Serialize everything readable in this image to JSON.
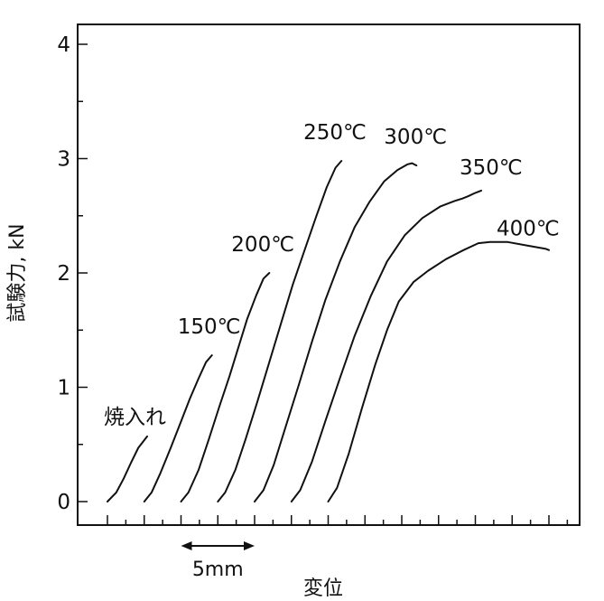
{
  "chart_data": {
    "type": "line",
    "title": "",
    "xlabel": "変位",
    "ylabel": "試験力, kN",
    "ylim": [
      0,
      4.2
    ],
    "y_ticks": [
      0,
      1,
      2,
      3,
      4
    ],
    "y_tick_labels": [
      "0",
      "1",
      "2",
      "3",
      "4"
    ],
    "y_minor_step": 0.5,
    "x_unit_mm": 5,
    "x_major_tick_every_mm": 2.5,
    "x_minor_tick_every_mm": 1.25,
    "xlim": [
      -2,
      32.5
    ],
    "scale_bar": {
      "label": "5mm",
      "from": 5,
      "to": 10
    },
    "grid": false,
    "legend": "none",
    "series": [
      {
        "name": "焼入れ",
        "x": [
          0,
          0.6,
          1.1,
          1.6,
          2.1,
          2.7
        ],
        "y": [
          0,
          0.08,
          0.2,
          0.34,
          0.47,
          0.57
        ]
      },
      {
        "name": "150℃",
        "x": [
          2.5,
          3.0,
          3.6,
          4.3,
          5.0,
          5.6,
          6.2,
          6.7,
          7.1
        ],
        "y": [
          0,
          0.08,
          0.25,
          0.47,
          0.7,
          0.9,
          1.08,
          1.22,
          1.28
        ]
      },
      {
        "name": "200℃",
        "x": [
          5,
          5.5,
          6.2,
          6.9,
          7.6,
          8.3,
          8.9,
          9.5,
          10.1,
          10.6,
          11.0
        ],
        "y": [
          0,
          0.08,
          0.28,
          0.55,
          0.83,
          1.1,
          1.35,
          1.6,
          1.8,
          1.95,
          2.0
        ]
      },
      {
        "name": "250℃",
        "x": [
          7.5,
          8.0,
          8.7,
          9.4,
          10.2,
          11.0,
          11.8,
          12.6,
          13.4,
          14.2,
          14.9,
          15.5,
          15.9
        ],
        "y": [
          0,
          0.08,
          0.28,
          0.55,
          0.88,
          1.22,
          1.56,
          1.9,
          2.2,
          2.5,
          2.75,
          2.92,
          2.98
        ]
      },
      {
        "name": "300℃",
        "x": [
          10,
          10.6,
          11.3,
          12.1,
          13.0,
          13.9,
          14.8,
          15.8,
          16.8,
          17.8,
          18.8,
          19.7,
          20.4,
          20.7,
          21.0
        ],
        "y": [
          0,
          0.1,
          0.32,
          0.65,
          1.02,
          1.4,
          1.76,
          2.1,
          2.4,
          2.62,
          2.8,
          2.9,
          2.95,
          2.96,
          2.94
        ]
      },
      {
        "name": "350℃",
        "x": [
          12.5,
          13.1,
          13.9,
          14.8,
          15.8,
          16.8,
          17.9,
          19.0,
          20.2,
          21.4,
          22.6,
          23.6,
          24.1,
          24.5,
          25.0,
          25.4
        ],
        "y": [
          0,
          0.1,
          0.35,
          0.7,
          1.08,
          1.45,
          1.8,
          2.1,
          2.33,
          2.48,
          2.58,
          2.63,
          2.65,
          2.67,
          2.7,
          2.72
        ]
      },
      {
        "name": "400℃",
        "x": [
          15,
          15.6,
          16.4,
          17.3,
          18.2,
          19.0,
          19.8,
          20.8,
          21.8,
          23.0,
          24.2,
          25.2,
          26.0,
          27.2,
          28.5,
          29.8,
          30.0
        ],
        "y": [
          0,
          0.12,
          0.42,
          0.82,
          1.2,
          1.5,
          1.75,
          1.92,
          2.02,
          2.12,
          2.2,
          2.26,
          2.27,
          2.27,
          2.24,
          2.21,
          2.2
        ]
      }
    ],
    "annotations": [
      "焼入れ",
      "150℃",
      "200℃",
      "250℃",
      "300℃",
      "350℃",
      "400℃"
    ]
  }
}
